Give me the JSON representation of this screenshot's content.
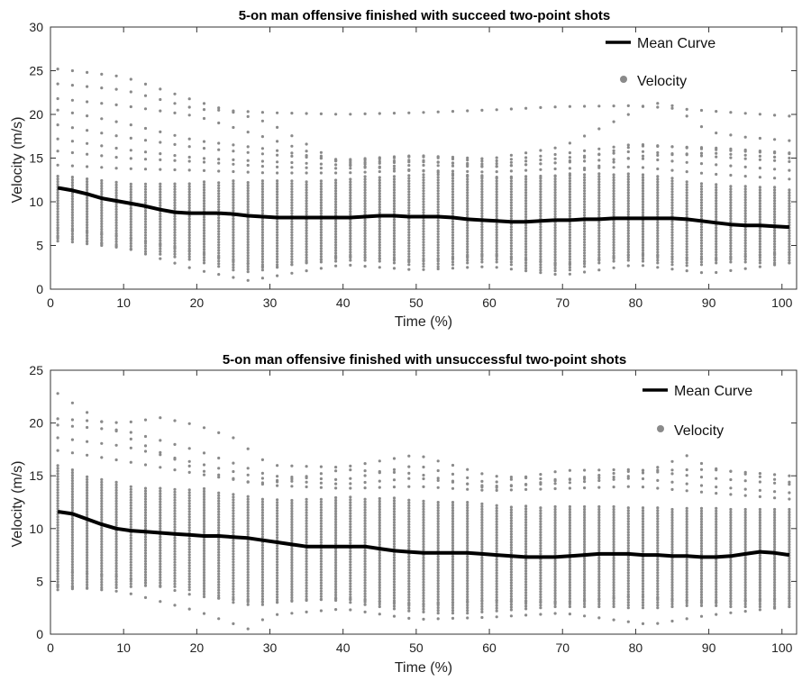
{
  "colors": {
    "velocity": "#8a8a8a",
    "mean": "#000000",
    "axes": "#333333"
  },
  "chart_data": [
    {
      "type": "scatter",
      "title": "5-on man offensive finished with succeed two-point shots",
      "xlabel": "Time (%)",
      "ylabel": "Velocity (m/s)",
      "xlim": [
        0,
        102
      ],
      "ylim": [
        0,
        30
      ],
      "xticks": [
        0,
        10,
        20,
        30,
        40,
        50,
        60,
        70,
        80,
        90,
        100
      ],
      "yticks": [
        0,
        5,
        10,
        15,
        20,
        25,
        30
      ],
      "legend": {
        "position": "top-right",
        "entries": [
          "Mean Curve",
          "Velocity"
        ]
      },
      "grid": false,
      "x": [
        1,
        3,
        5,
        7,
        9,
        11,
        13,
        15,
        17,
        19,
        21,
        23,
        25,
        27,
        29,
        31,
        33,
        35,
        37,
        39,
        41,
        43,
        45,
        47,
        49,
        51,
        53,
        55,
        57,
        59,
        61,
        63,
        65,
        67,
        69,
        71,
        73,
        75,
        77,
        79,
        81,
        83,
        85,
        87,
        89,
        91,
        93,
        95,
        97,
        99,
        101
      ],
      "mean": [
        11.6,
        11.3,
        10.9,
        10.4,
        10.1,
        9.8,
        9.5,
        9.1,
        8.8,
        8.7,
        8.7,
        8.7,
        8.6,
        8.4,
        8.3,
        8.2,
        8.2,
        8.2,
        8.2,
        8.2,
        8.2,
        8.3,
        8.4,
        8.4,
        8.3,
        8.3,
        8.3,
        8.2,
        8.0,
        7.9,
        7.8,
        7.7,
        7.7,
        7.8,
        7.9,
        7.9,
        8.0,
        8.0,
        8.1,
        8.1,
        8.1,
        8.1,
        8.1,
        8.0,
        7.8,
        7.6,
        7.4,
        7.3,
        7.3,
        7.2,
        7.1
      ],
      "band_low": [
        5.5,
        5.4,
        5.2,
        5.0,
        4.8,
        4.6,
        4.3,
        4.0,
        3.7,
        3.4,
        3.0,
        2.6,
        2.2,
        2.0,
        2.2,
        2.5,
        2.8,
        3.0,
        3.1,
        3.2,
        3.3,
        3.3,
        3.2,
        3.0,
        2.8,
        2.6,
        2.6,
        2.8,
        3.0,
        3.1,
        3.1,
        2.8,
        2.4,
        2.2,
        2.1,
        2.2,
        2.6,
        3.0,
        3.2,
        3.3,
        3.2,
        3.0,
        2.8,
        2.7,
        2.8,
        3.0,
        3.1,
        3.1,
        3.0,
        3.0,
        3.0
      ],
      "band_high": [
        13.0,
        12.9,
        12.7,
        12.5,
        12.3,
        12.2,
        12.1,
        12.1,
        12.1,
        12.2,
        12.3,
        12.4,
        12.5,
        12.5,
        12.5,
        12.5,
        12.5,
        12.5,
        12.6,
        12.7,
        12.8,
        12.9,
        13.0,
        13.1,
        13.2,
        13.3,
        13.3,
        13.2,
        13.1,
        13.0,
        12.9,
        12.8,
        12.8,
        12.9,
        13.0,
        13.1,
        13.2,
        13.3,
        13.3,
        13.2,
        13.1,
        12.9,
        12.7,
        12.5,
        12.3,
        12.1,
        12.0,
        11.9,
        11.8,
        11.7,
        11.6
      ],
      "upper_traces": [
        {
          "x": [
            1,
            10,
            20,
            30,
            40,
            50,
            60,
            70,
            80,
            90,
            101
          ],
          "y": [
            25.2,
            24.3,
            21.5,
            19.0,
            14.2,
            13.6,
            12.8,
            13.0,
            15.2,
            15.6,
            15.0
          ]
        },
        {
          "x": [
            1,
            10,
            20,
            30,
            40,
            50,
            60,
            70,
            80,
            90,
            101
          ],
          "y": [
            23.5,
            22.8,
            20.6,
            20.2,
            20.0,
            20.2,
            20.5,
            20.9,
            21.0,
            20.4,
            19.8
          ]
        },
        {
          "x": [
            1,
            10,
            20,
            30,
            40,
            50,
            60,
            70,
            80,
            90,
            101
          ],
          "y": [
            21.8,
            21.0,
            19.8,
            17.2,
            14.4,
            14.8,
            14.0,
            14.5,
            16.4,
            16.2,
            15.6
          ]
        },
        {
          "x": [
            1,
            10,
            20,
            30,
            40,
            50,
            60,
            70,
            80,
            90,
            101
          ],
          "y": [
            20.5,
            19.0,
            17.0,
            16.0,
            14.6,
            15.2,
            14.6,
            15.5,
            16.6,
            16.0,
            15.5
          ]
        },
        {
          "x": [
            1,
            10,
            20,
            30,
            40,
            50,
            60,
            70,
            80,
            82,
            85,
            90,
            95,
            101
          ],
          "y": [
            18.8,
            17.4,
            16.2,
            15.4,
            14.8,
            15.3,
            14.9,
            16.3,
            20.4,
            21.4,
            21.0,
            18.0,
            17.4,
            17.0
          ]
        },
        {
          "x": [
            1,
            10,
            20,
            30,
            40,
            50,
            60,
            70,
            80,
            90,
            101
          ],
          "y": [
            17.2,
            16.0,
            15.0,
            14.6,
            14.2,
            14.6,
            14.3,
            15.0,
            15.8,
            15.2,
            14.6
          ]
        },
        {
          "x": [
            1,
            10,
            20,
            30,
            40,
            50,
            60,
            70,
            80,
            90,
            101
          ],
          "y": [
            15.8,
            15.0,
            14.6,
            14.0,
            13.8,
            14.2,
            14.0,
            14.5,
            15.0,
            14.3,
            13.6
          ]
        },
        {
          "x": [
            1,
            10,
            20,
            30,
            40,
            50,
            60,
            70,
            80,
            90,
            101
          ],
          "y": [
            14.2,
            13.8,
            13.6,
            13.3,
            13.3,
            13.6,
            13.4,
            13.8,
            14.0,
            13.2,
            12.6
          ]
        }
      ],
      "lower_traces": [
        {
          "x": [
            1,
            10,
            20,
            27,
            30,
            40,
            50,
            60,
            70,
            80,
            90,
            101
          ],
          "y": [
            6.0,
            4.8,
            2.2,
            1.0,
            1.4,
            2.8,
            2.2,
            2.6,
            1.6,
            2.8,
            1.8,
            3.0
          ]
        },
        {
          "x": [
            1,
            10,
            20,
            30,
            40,
            50,
            60,
            70,
            80,
            90,
            101
          ],
          "y": [
            7.0,
            6.0,
            4.2,
            2.4,
            3.8,
            3.2,
            4.0,
            2.8,
            4.0,
            3.4,
            4.2
          ]
        }
      ]
    },
    {
      "type": "scatter",
      "title": "5-on man offensive finished with unsuccessful two-point shots",
      "xlabel": "Time (%)",
      "ylabel": "Velocity (m/s)",
      "xlim": [
        0,
        102
      ],
      "ylim": [
        0,
        25
      ],
      "xticks": [
        0,
        10,
        20,
        30,
        40,
        50,
        60,
        70,
        80,
        90,
        100
      ],
      "yticks": [
        0,
        5,
        10,
        15,
        20,
        25
      ],
      "legend": {
        "position": "top-right",
        "entries": [
          "Mean Curve",
          "Velocity"
        ]
      },
      "grid": false,
      "x": [
        1,
        3,
        5,
        7,
        9,
        11,
        13,
        15,
        17,
        19,
        21,
        23,
        25,
        27,
        29,
        31,
        33,
        35,
        37,
        39,
        41,
        43,
        45,
        47,
        49,
        51,
        53,
        55,
        57,
        59,
        61,
        63,
        65,
        67,
        69,
        71,
        73,
        75,
        77,
        79,
        81,
        83,
        85,
        87,
        89,
        91,
        93,
        95,
        97,
        99,
        101
      ],
      "mean": [
        11.6,
        11.4,
        10.9,
        10.4,
        10.0,
        9.8,
        9.7,
        9.6,
        9.5,
        9.4,
        9.3,
        9.3,
        9.2,
        9.1,
        8.9,
        8.7,
        8.5,
        8.3,
        8.3,
        8.3,
        8.3,
        8.3,
        8.1,
        7.9,
        7.8,
        7.7,
        7.7,
        7.7,
        7.7,
        7.6,
        7.5,
        7.4,
        7.3,
        7.3,
        7.3,
        7.4,
        7.5,
        7.6,
        7.6,
        7.6,
        7.5,
        7.5,
        7.4,
        7.4,
        7.3,
        7.3,
        7.4,
        7.6,
        7.8,
        7.7,
        7.5
      ],
      "band_low": [
        4.2,
        4.3,
        4.4,
        4.4,
        4.4,
        4.5,
        4.6,
        4.6,
        4.5,
        4.2,
        3.8,
        3.4,
        3.0,
        2.8,
        2.8,
        3.0,
        3.2,
        3.3,
        3.3,
        3.2,
        3.0,
        2.8,
        2.6,
        2.4,
        2.2,
        2.1,
        2.0,
        2.0,
        2.0,
        2.1,
        2.2,
        2.3,
        2.4,
        2.5,
        2.6,
        2.6,
        2.6,
        2.6,
        2.6,
        2.5,
        2.5,
        2.5,
        2.6,
        2.7,
        2.7,
        2.7,
        2.6,
        2.6,
        2.6,
        2.6,
        2.6
      ],
      "band_high": [
        16.0,
        15.6,
        15.1,
        14.7,
        14.4,
        14.2,
        14.0,
        13.9,
        13.9,
        13.9,
        13.8,
        13.6,
        13.4,
        13.1,
        12.9,
        12.8,
        12.8,
        12.8,
        12.9,
        13.0,
        13.0,
        13.0,
        13.0,
        13.0,
        12.9,
        12.8,
        12.7,
        12.6,
        12.5,
        12.4,
        12.3,
        12.2,
        12.2,
        12.2,
        12.2,
        12.3,
        12.3,
        12.3,
        12.2,
        12.2,
        12.1,
        12.0,
        12.0,
        12.0,
        12.0,
        12.0,
        12.0,
        12.0,
        12.0,
        12.0,
        12.0
      ],
      "upper_traces": [
        {
          "x": [
            1,
            5,
            10,
            20,
            27,
            30,
            40,
            50,
            60,
            70,
            80,
            90,
            101
          ],
          "y": [
            22.8,
            21.0,
            18.8,
            15.6,
            14.4,
            14.3,
            15.6,
            15.2,
            13.8,
            14.6,
            15.5,
            15.6,
            15.0
          ]
        },
        {
          "x": [
            1,
            10,
            15,
            20,
            25,
            30,
            40,
            50,
            60,
            70,
            80,
            87,
            90,
            101
          ],
          "y": [
            20.4,
            20.0,
            20.5,
            19.8,
            18.6,
            16.0,
            15.8,
            17.0,
            15.0,
            14.6,
            15.0,
            16.9,
            15.8,
            14.4
          ]
        },
        {
          "x": [
            1,
            10,
            20,
            30,
            40,
            50,
            60,
            70,
            80,
            90,
            101
          ],
          "y": [
            19.8,
            19.3,
            17.4,
            15.0,
            14.6,
            16.0,
            14.3,
            15.5,
            15.6,
            14.8,
            14.2
          ]
        },
        {
          "x": [
            1,
            10,
            20,
            30,
            40,
            50,
            60,
            70,
            80,
            90,
            101
          ],
          "y": [
            18.6,
            17.8,
            16.2,
            14.6,
            14.2,
            14.8,
            14.0,
            14.3,
            14.8,
            14.0,
            13.4
          ]
        },
        {
          "x": [
            1,
            10,
            20,
            30,
            40,
            50,
            60,
            70,
            80,
            90,
            101
          ],
          "y": [
            17.4,
            16.4,
            15.2,
            14.1,
            13.8,
            14.0,
            13.6,
            13.8,
            14.0,
            13.4,
            12.8
          ]
        }
      ],
      "lower_traces": [
        {
          "x": [
            1,
            10,
            20,
            27,
            30,
            40,
            50,
            60,
            70,
            82,
            90,
            101
          ],
          "y": [
            4.6,
            4.0,
            2.2,
            0.5,
            1.8,
            2.4,
            1.4,
            1.6,
            2.0,
            0.9,
            1.8,
            2.6
          ]
        },
        {
          "x": [
            1,
            10,
            20,
            30,
            40,
            50,
            60,
            70,
            80,
            90,
            101
          ],
          "y": [
            6.0,
            5.4,
            3.6,
            3.0,
            3.4,
            2.8,
            3.2,
            3.0,
            3.6,
            3.0,
            3.4
          ]
        }
      ]
    }
  ]
}
